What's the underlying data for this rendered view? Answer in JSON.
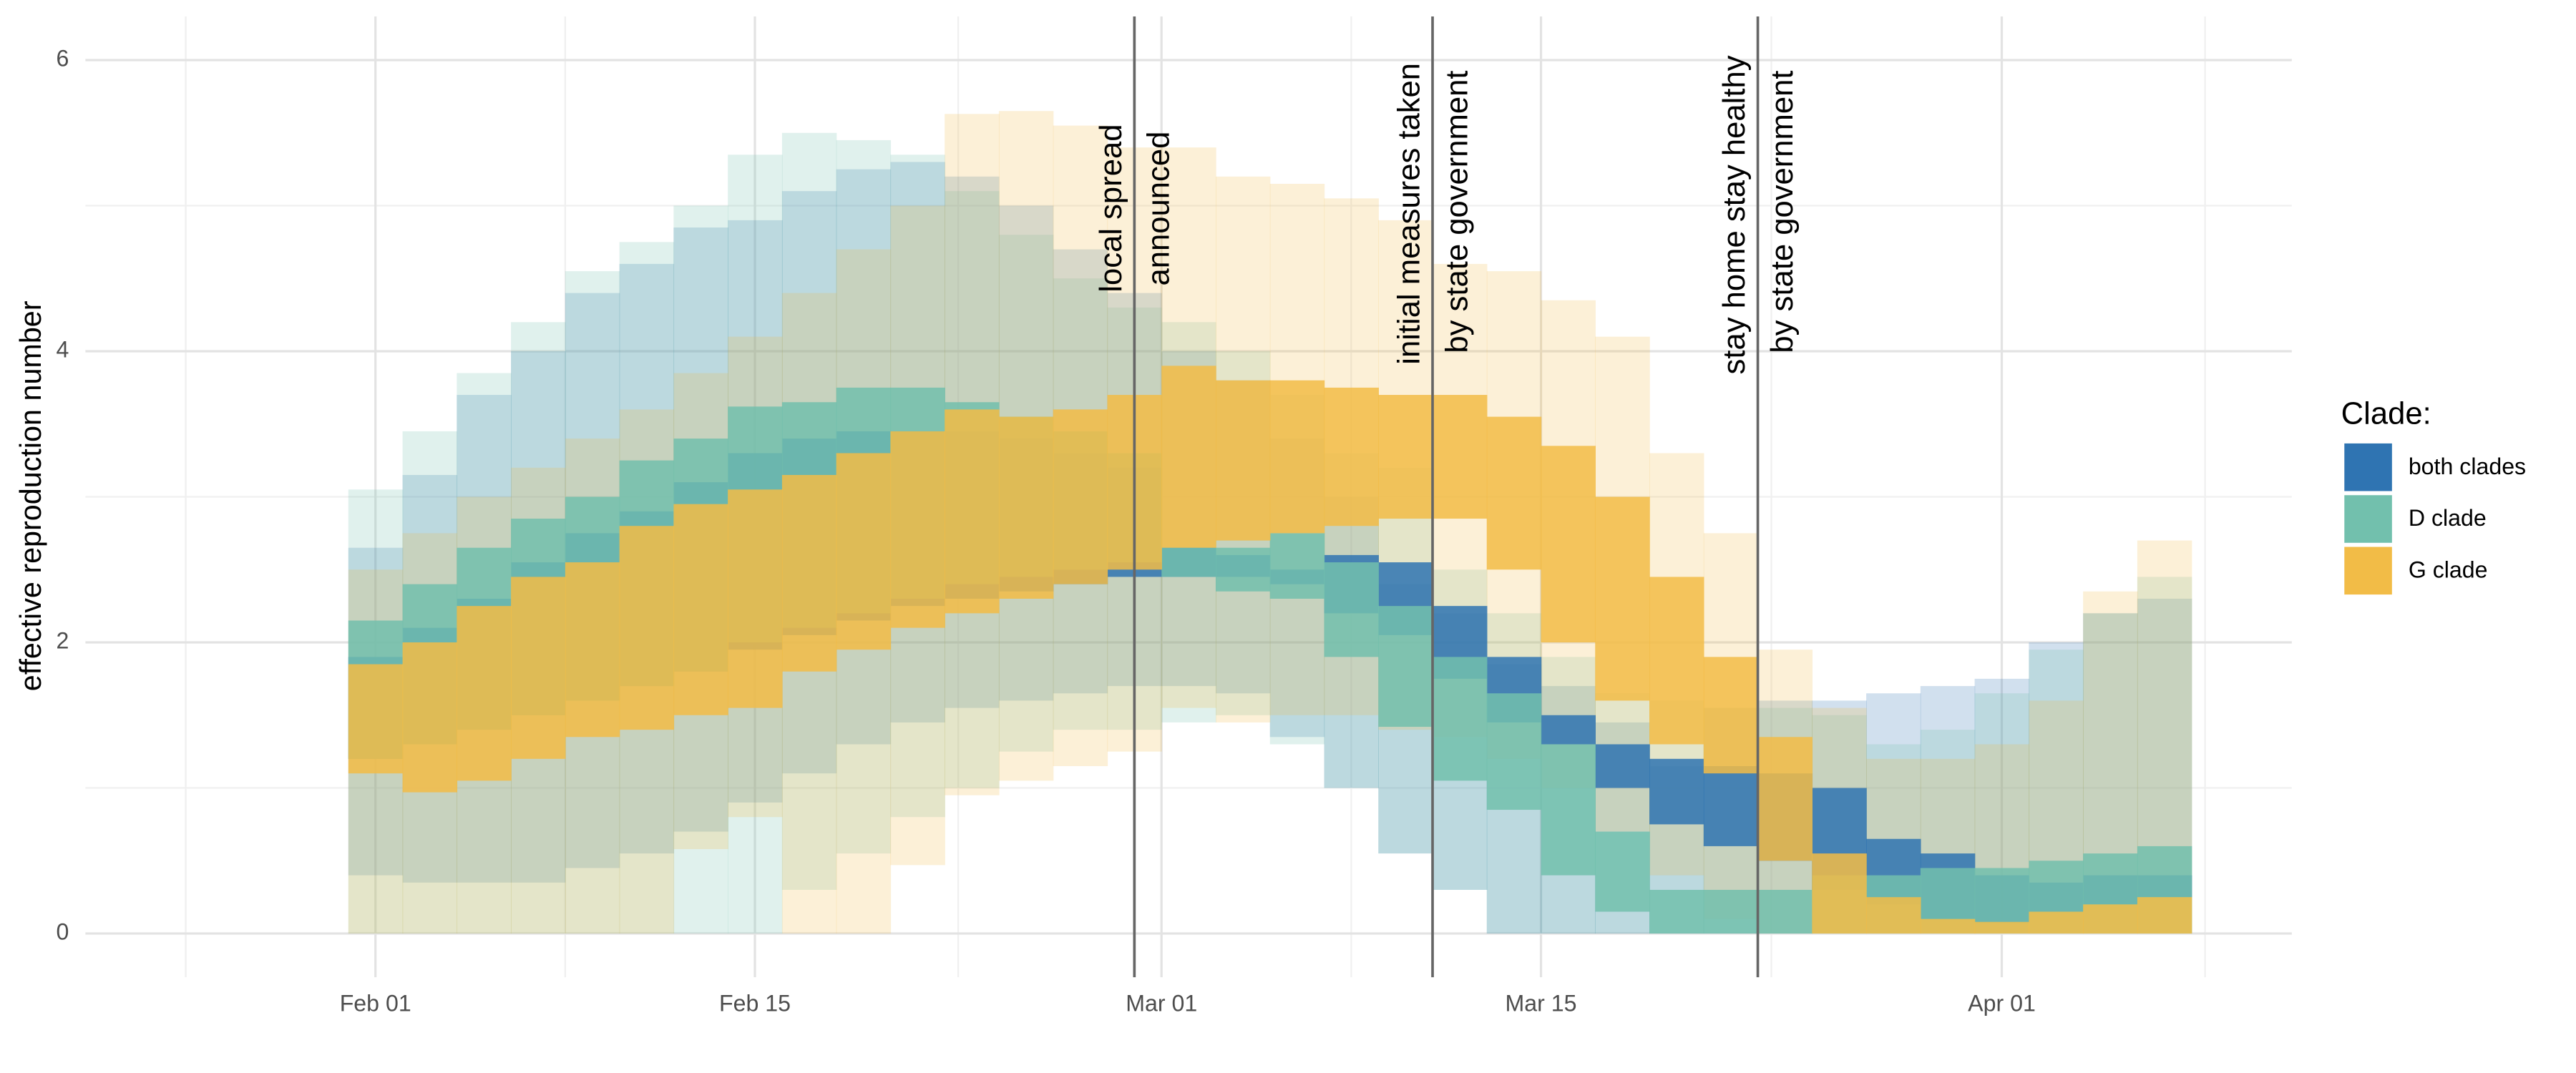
{
  "chart_data": {
    "type": "ribbon-step",
    "ylabel": "effective reproduction number",
    "legend_title": "Clade:",
    "legend": "right",
    "grid": true,
    "xlim": [
      -10.7,
      70.7
    ],
    "xticks": [
      {
        "value": 0,
        "label": "Feb 01"
      },
      {
        "value": 14,
        "label": "Feb 15"
      },
      {
        "value": 29,
        "label": "Mar 01"
      },
      {
        "value": 43,
        "label": "Mar 15"
      },
      {
        "value": 60,
        "label": "Apr 01"
      }
    ],
    "xminor_ticks": [
      -7,
      7,
      21.5,
      36,
      51.5,
      67.5
    ],
    "ylim": [
      -0.3,
      6.3
    ],
    "yticks": [
      0,
      2,
      4,
      6
    ],
    "yminor_ticks": [
      1,
      3,
      5
    ],
    "bins": [
      -1,
      1,
      3,
      5,
      7,
      9,
      11,
      13,
      15,
      17,
      19,
      21,
      23,
      25,
      27,
      29,
      31,
      33,
      35,
      37,
      39,
      41,
      43,
      45,
      47,
      49,
      51,
      53,
      55,
      57,
      59,
      61,
      63,
      65,
      67
    ],
    "events": [
      {
        "x": 28,
        "label": [
          "local spread",
          "announced"
        ]
      },
      {
        "x": 39,
        "label": [
          "initial measures taken",
          "by state government"
        ]
      },
      {
        "x": 51,
        "label": [
          "stay home stay healthy",
          "by state government"
        ]
      }
    ],
    "series": [
      {
        "name": "both clades",
        "color": "#2f74b2",
        "lower_inner": [
          1.2,
          1.3,
          1.4,
          1.5,
          1.6,
          1.7,
          1.8,
          1.95,
          2.05,
          2.15,
          2.25,
          2.3,
          2.35,
          2.4,
          2.45,
          2.45,
          2.45,
          2.4,
          2.2,
          2.05,
          1.75,
          1.45,
          1.3,
          1.0,
          0.75,
          0.6,
          0.5,
          0.3,
          0.2,
          0.1,
          0.07,
          0.15,
          0.2,
          0.25
        ],
        "upper_inner": [
          1.9,
          2.1,
          2.3,
          2.55,
          2.75,
          2.9,
          3.1,
          3.3,
          3.4,
          3.45,
          3.45,
          3.45,
          3.4,
          3.3,
          3.2,
          2.65,
          2.6,
          2.5,
          2.6,
          2.55,
          2.25,
          1.9,
          1.5,
          1.3,
          1.2,
          1.15,
          1.1,
          1.0,
          0.65,
          0.55,
          0.4,
          0.35,
          0.4,
          0.4
        ],
        "lower_outer": [
          0.4,
          0.35,
          0.35,
          0.35,
          0.45,
          0.55,
          0.7,
          0.9,
          1.1,
          1.3,
          1.45,
          1.55,
          1.6,
          1.65,
          1.7,
          1.7,
          1.65,
          1.35,
          1.0,
          0.55,
          0.3,
          0,
          0,
          0,
          0,
          0,
          0,
          0,
          0,
          0,
          0,
          0,
          0,
          0
        ],
        "upper_outer": [
          2.65,
          3.15,
          3.7,
          4.0,
          4.4,
          4.6,
          4.85,
          4.9,
          5.1,
          5.25,
          5.3,
          5.2,
          5.0,
          4.7,
          4.4,
          4.0,
          3.8,
          3.4,
          3.0,
          2.4,
          2.2,
          1.85,
          1.7,
          1.45,
          1.15,
          1.55,
          1.6,
          1.6,
          1.65,
          1.7,
          1.75,
          2.0,
          2.2,
          2.3
        ]
      },
      {
        "name": "D clade",
        "color": "#72c0ad",
        "lower_inner": [
          1.2,
          1.3,
          1.4,
          1.5,
          1.6,
          1.7,
          1.8,
          2.0,
          2.1,
          2.2,
          2.3,
          2.4,
          2.45,
          2.5,
          2.55,
          2.45,
          2.35,
          2.3,
          1.9,
          1.42,
          1.05,
          0.85,
          0.4,
          0.15,
          0,
          0,
          0,
          0,
          0,
          0,
          0,
          0,
          0,
          0
        ],
        "upper_inner": [
          2.15,
          2.4,
          2.65,
          2.85,
          3.0,
          3.25,
          3.4,
          3.62,
          3.65,
          3.75,
          3.75,
          3.65,
          3.55,
          3.45,
          3.3,
          2.65,
          2.65,
          2.75,
          2.55,
          2.25,
          1.9,
          1.65,
          1.3,
          0.7,
          0.3,
          0.3,
          0.3,
          0.4,
          0.4,
          0.45,
          0.45,
          0.5,
          0.55,
          0.6
        ],
        "lower_outer": [
          0,
          0,
          0,
          0,
          0,
          0,
          0,
          0,
          0.3,
          0.55,
          0.8,
          1.0,
          1.25,
          1.4,
          1.4,
          1.45,
          1.5,
          1.3,
          1.0,
          0.55,
          0.3,
          0,
          0,
          0,
          0,
          0,
          0,
          0,
          0,
          0,
          0,
          0,
          0,
          0
        ],
        "upper_outer": [
          3.05,
          3.45,
          3.85,
          4.2,
          4.55,
          4.75,
          5.0,
          5.35,
          5.5,
          5.45,
          5.35,
          5.1,
          4.8,
          4.5,
          4.3,
          4.2,
          4.0,
          3.7,
          3.3,
          3.2,
          2.5,
          2.2,
          1.9,
          1.65,
          1.6,
          1.55,
          1.55,
          1.5,
          1.3,
          1.4,
          1.65,
          1.95,
          2.2,
          2.45
        ]
      },
      {
        "name": "G clade",
        "color": "#f2bc47",
        "lower_inner": [
          1.1,
          0.97,
          1.05,
          1.2,
          1.35,
          1.4,
          1.5,
          1.55,
          1.8,
          1.95,
          2.1,
          2.2,
          2.3,
          2.4,
          2.5,
          2.65,
          2.7,
          2.75,
          2.8,
          2.85,
          2.85,
          2.5,
          2.0,
          1.6,
          1.3,
          1.1,
          0.5,
          0,
          0,
          0,
          0,
          0,
          0,
          0
        ],
        "upper_inner": [
          1.85,
          2.0,
          2.25,
          2.45,
          2.55,
          2.8,
          2.95,
          3.05,
          3.15,
          3.3,
          3.45,
          3.6,
          3.55,
          3.6,
          3.7,
          3.9,
          3.8,
          3.8,
          3.75,
          3.7,
          3.7,
          3.55,
          3.35,
          3.0,
          2.45,
          1.9,
          1.35,
          0.55,
          0.25,
          0.1,
          0.08,
          0.15,
          0.2,
          0.25
        ],
        "lower_outer": [
          0,
          0,
          0,
          0,
          0,
          0,
          0.58,
          0.8,
          0,
          0,
          0.47,
          0.95,
          1.05,
          1.15,
          1.25,
          1.55,
          1.45,
          1.5,
          1.5,
          1.4,
          1.35,
          1.2,
          1.0,
          0.7,
          0.4,
          0.1,
          0,
          0,
          0,
          0,
          0,
          0,
          0,
          0
        ],
        "upper_outer": [
          2.5,
          2.75,
          3.0,
          3.2,
          3.4,
          3.6,
          3.85,
          4.1,
          4.4,
          4.7,
          5.0,
          5.63,
          5.65,
          5.55,
          5.4,
          5.4,
          5.2,
          5.15,
          5.05,
          4.9,
          4.6,
          4.55,
          4.35,
          4.1,
          3.3,
          2.75,
          1.95,
          1.55,
          1.2,
          1.2,
          1.3,
          1.6,
          2.35,
          2.7
        ]
      }
    ]
  }
}
